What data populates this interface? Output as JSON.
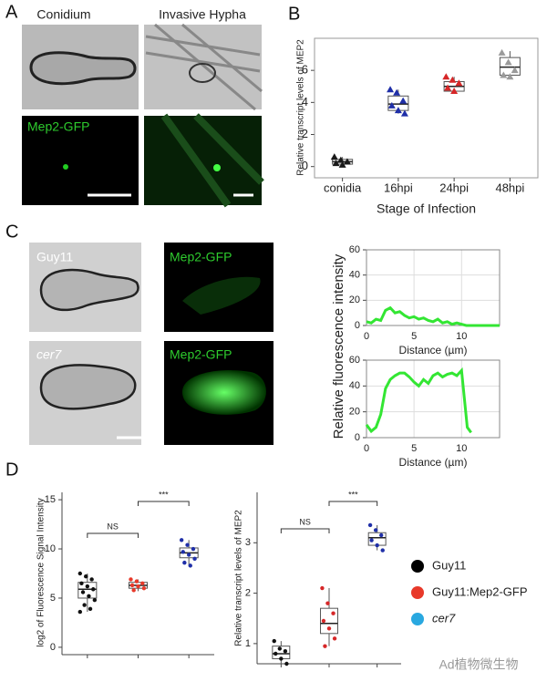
{
  "figure": {
    "panel_labels": [
      "A",
      "B",
      "C",
      "D"
    ],
    "panel_a": {
      "titles": [
        "Conidium",
        "Invasive Hypha"
      ],
      "channel_label": "Mep2-GFP"
    },
    "panel_c": {
      "strains": [
        "Guy11",
        "cer7"
      ],
      "channel_labels": [
        "Mep2-GFP",
        "Mep2-GFP"
      ]
    },
    "watermark": "Ad植物微生物"
  },
  "chart_data": [
    {
      "type": "box",
      "ylabel": "Relative transcript levels of MEP2",
      "xlabel": "Stage of Infection",
      "categories": [
        "conidia",
        "16hpi",
        "24hpi",
        "48hpi"
      ],
      "ylim": [
        -0.7,
        8.0
      ],
      "yticks": [
        0,
        2,
        4,
        6
      ],
      "frame": true,
      "boxes": [
        {
          "color": "#1a1a1a",
          "q1": 0.15,
          "median": 0.3,
          "q3": 0.45,
          "whisker_low": 0.05,
          "whisker_high": 0.6,
          "points": [
            0.6,
            0.4,
            0.3,
            0.2,
            0.1
          ]
        },
        {
          "color": "#1f2fa8",
          "q1": 3.5,
          "median": 3.9,
          "q3": 4.4,
          "whisker_low": 3.3,
          "whisker_high": 4.8,
          "points": [
            4.8,
            4.6,
            4.1,
            3.8,
            3.5,
            3.3
          ]
        },
        {
          "color": "#d62728",
          "q1": 4.7,
          "median": 5.0,
          "q3": 5.3,
          "whisker_low": 4.6,
          "whisker_high": 5.6,
          "points": [
            5.6,
            5.4,
            5.2,
            4.9,
            4.7
          ]
        },
        {
          "color": "#9a9a9a",
          "q1": 5.7,
          "median": 6.2,
          "q3": 6.8,
          "whisker_low": 5.6,
          "whisker_high": 7.2,
          "points": [
            7.1,
            6.5,
            6.0,
            5.7,
            5.6
          ]
        }
      ]
    },
    {
      "type": "line",
      "ylabel": "Relative fluorescence intensity",
      "xlabel": "Distance (µm)",
      "color": "#33e633",
      "grid": true,
      "xlim": [
        0,
        14
      ],
      "xticks": [
        0,
        5,
        10
      ],
      "ylim": [
        0,
        60
      ],
      "yticks": [
        0,
        20,
        40,
        60
      ],
      "x": [
        0,
        0.5,
        1,
        1.5,
        2,
        2.5,
        3,
        3.5,
        4,
        4.5,
        5,
        5.5,
        6,
        6.5,
        7,
        7.5,
        8,
        8.5,
        9,
        9.5,
        10,
        10.5,
        11,
        12,
        13,
        14
      ],
      "values": [
        3,
        2,
        5,
        4,
        12,
        14,
        10,
        11,
        8,
        6,
        7,
        5,
        6,
        4,
        3,
        5,
        2,
        3,
        1,
        2,
        1,
        0,
        0,
        0,
        0,
        0
      ]
    },
    {
      "type": "line",
      "xlabel": "Distance (µm)",
      "color": "#33e633",
      "grid": true,
      "xlim": [
        0,
        14
      ],
      "xticks": [
        0,
        5,
        10
      ],
      "ylim": [
        0,
        60
      ],
      "yticks": [
        0,
        20,
        40,
        60
      ],
      "x": [
        0,
        0.5,
        1,
        1.5,
        2,
        2.5,
        3,
        3.5,
        4,
        4.5,
        5,
        5.5,
        6,
        6.5,
        7,
        7.5,
        8,
        8.5,
        9,
        9.5,
        10,
        10.3,
        10.6,
        11
      ],
      "values": [
        10,
        5,
        8,
        18,
        38,
        45,
        48,
        50,
        50,
        47,
        43,
        40,
        45,
        42,
        48,
        50,
        47,
        49,
        50,
        48,
        52,
        30,
        8,
        4
      ]
    },
    {
      "type": "box",
      "ylabel": "log2 of Fluorescence Signal Intensity",
      "categories": [
        null,
        null,
        null
      ],
      "ylim": [
        -0.75,
        15.75
      ],
      "yticks": [
        0,
        5,
        10,
        15
      ],
      "annotations": [
        {
          "groups": [
            0,
            1
          ],
          "label": "NS"
        },
        {
          "groups": [
            1,
            2
          ],
          "label": "***"
        }
      ],
      "boxes": [
        {
          "color": "#111111",
          "q1": 5.0,
          "median": 5.9,
          "q3": 6.6,
          "whisker_low": 3.6,
          "whisker_high": 7.5,
          "points": [
            7.5,
            7.2,
            6.9,
            6.5,
            6.2,
            5.9,
            5.6,
            5.2,
            4.8,
            4.3,
            3.9,
            3.6
          ]
        },
        {
          "color": "#e8392a",
          "q1": 6.0,
          "median": 6.3,
          "q3": 6.6,
          "whisker_low": 5.7,
          "whisker_high": 6.9,
          "points": [
            6.9,
            6.7,
            6.5,
            6.3,
            6.2,
            6.0,
            5.8
          ]
        },
        {
          "color": "#1f2fa8",
          "q1": 9.1,
          "median": 9.6,
          "q3": 10.1,
          "whisker_low": 8.3,
          "whisker_high": 10.9,
          "points": [
            10.9,
            10.4,
            10.0,
            9.7,
            9.4,
            9.0,
            8.6,
            8.3
          ]
        }
      ]
    },
    {
      "type": "box",
      "ylabel": "Relative transcript levels of MEP2",
      "categories": [
        null,
        null,
        null
      ],
      "ylim": [
        0.6,
        4.0
      ],
      "yticks": [
        1,
        2,
        3
      ],
      "annotations": [
        {
          "groups": [
            0,
            1
          ],
          "label": "NS"
        },
        {
          "groups": [
            1,
            2
          ],
          "label": "***"
        }
      ],
      "legend": [
        {
          "name": "Guy11",
          "color": "#000000"
        },
        {
          "name": "Guy11:Mep2-GFP",
          "color": "#e8392a"
        },
        {
          "name": "cer7",
          "color": "#29a8e0"
        }
      ],
      "boxes": [
        {
          "color": "#111111",
          "q1": 0.7,
          "median": 0.8,
          "q3": 0.95,
          "whisker_low": 0.6,
          "whisker_high": 1.05,
          "points": [
            1.05,
            0.9,
            0.85,
            0.8,
            0.7,
            0.6
          ]
        },
        {
          "color": "#d62728",
          "q1": 1.2,
          "median": 1.4,
          "q3": 1.7,
          "whisker_low": 0.95,
          "whisker_high": 2.1,
          "points": [
            2.1,
            1.8,
            1.6,
            1.45,
            1.3,
            1.1,
            0.95
          ]
        },
        {
          "color": "#1f2fa8",
          "q1": 2.95,
          "median": 3.1,
          "q3": 3.2,
          "whisker_low": 2.85,
          "whisker_high": 3.35,
          "points": [
            3.35,
            3.25,
            3.15,
            3.05,
            2.95,
            2.85
          ]
        }
      ]
    }
  ]
}
